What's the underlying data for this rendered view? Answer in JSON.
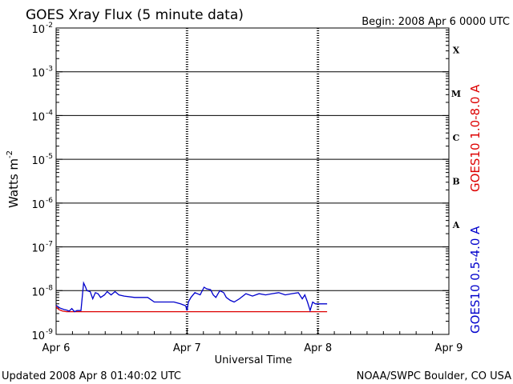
{
  "header": {
    "title": "GOES Xray Flux (5 minute data)",
    "begin": "Begin:  2008 Apr 6 0000 UTC"
  },
  "footer": {
    "updated": "Updated 2008 Apr  8 01:40:02 UTC",
    "source": "NOAA/SWPC Boulder, CO USA"
  },
  "colors": {
    "long_channel": "#dd0000",
    "short_channel": "#0000cc",
    "axes": "#000000"
  },
  "chart_data": {
    "type": "line",
    "title": "GOES Xray Flux (5 minute data)",
    "xlabel": "Universal Time",
    "ylabel": "Watts m",
    "ylabel_superscript": "-2",
    "y_scale": "log",
    "y_exponent_range": [
      -9,
      -2
    ],
    "y_tick_base": "10",
    "y_tick_exponents": [
      "-9",
      "-8",
      "-7",
      "-6",
      "-5",
      "-4",
      "-3",
      "-2"
    ],
    "x_range_days": [
      0,
      3
    ],
    "x_tick_labels": [
      "Apr 6",
      "Apr 7",
      "Apr 8",
      "Apr 9"
    ],
    "flare_classes": [
      {
        "label": "A",
        "exponent": -7
      },
      {
        "label": "B",
        "exponent": -6
      },
      {
        "label": "C",
        "exponent": -5
      },
      {
        "label": "M",
        "exponent": -4
      },
      {
        "label": "X",
        "exponent": -3
      }
    ],
    "series": [
      {
        "name": "GOES10 1.0-8.0 A",
        "color": "#dd0000",
        "x": [
          0.0,
          0.02,
          0.05,
          0.08,
          0.12,
          0.2,
          0.4,
          0.7,
          0.99,
          1.0,
          1.3,
          1.6,
          1.9,
          2.07
        ],
        "y": [
          4.3e-09,
          3.7e-09,
          3.4e-09,
          3.3e-09,
          3.3e-09,
          3.3e-09,
          3.3e-09,
          3.3e-09,
          3.3e-09,
          3.3e-09,
          3.3e-09,
          3.3e-09,
          3.3e-09,
          3.3e-09
        ]
      },
      {
        "name": "GOES10 0.5-4.0 A",
        "color": "#0000cc",
        "x": [
          0.0,
          0.03,
          0.06,
          0.08,
          0.1,
          0.12,
          0.14,
          0.16,
          0.19,
          0.21,
          0.225,
          0.235,
          0.26,
          0.28,
          0.3,
          0.32,
          0.34,
          0.37,
          0.39,
          0.42,
          0.45,
          0.48,
          0.52,
          0.6,
          0.7,
          0.75,
          0.8,
          0.9,
          0.95,
          0.99,
          1.0,
          1.01,
          1.03,
          1.06,
          1.1,
          1.13,
          1.15,
          1.18,
          1.2,
          1.22,
          1.25,
          1.28,
          1.3,
          1.33,
          1.36,
          1.4,
          1.45,
          1.5,
          1.55,
          1.6,
          1.65,
          1.7,
          1.75,
          1.8,
          1.85,
          1.88,
          1.9,
          1.92,
          1.94,
          1.96,
          1.98,
          2.0,
          2.02,
          2.04,
          2.07
        ],
        "y": [
          4.6e-09,
          4e-09,
          3.7e-09,
          3.6e-09,
          3.4e-09,
          3.9e-09,
          3.3e-09,
          3.5e-09,
          3.5e-09,
          1.5e-08,
          1.2e-08,
          1e-08,
          9.5e-09,
          6.5e-09,
          9e-09,
          8.5e-09,
          7e-09,
          8e-09,
          9.5e-09,
          8e-09,
          9.5e-09,
          8e-09,
          7.5e-09,
          7e-09,
          7e-09,
          5.5e-09,
          5.5e-09,
          5.5e-09,
          5e-09,
          4.5e-09,
          3.5e-09,
          5.5e-09,
          7e-09,
          9e-09,
          8e-09,
          1.2e-08,
          1.1e-08,
          1.05e-08,
          8e-09,
          7e-09,
          1e-08,
          9e-09,
          7e-09,
          6e-09,
          5.5e-09,
          6.5e-09,
          8.5e-09,
          7.5e-09,
          8.5e-09,
          8e-09,
          8.5e-09,
          9e-09,
          8e-09,
          8.5e-09,
          9e-09,
          6.5e-09,
          8e-09,
          5.5e-09,
          3.5e-09,
          5.5e-09,
          5e-09,
          5e-09,
          5e-09,
          5e-09,
          5e-09
        ]
      }
    ]
  }
}
